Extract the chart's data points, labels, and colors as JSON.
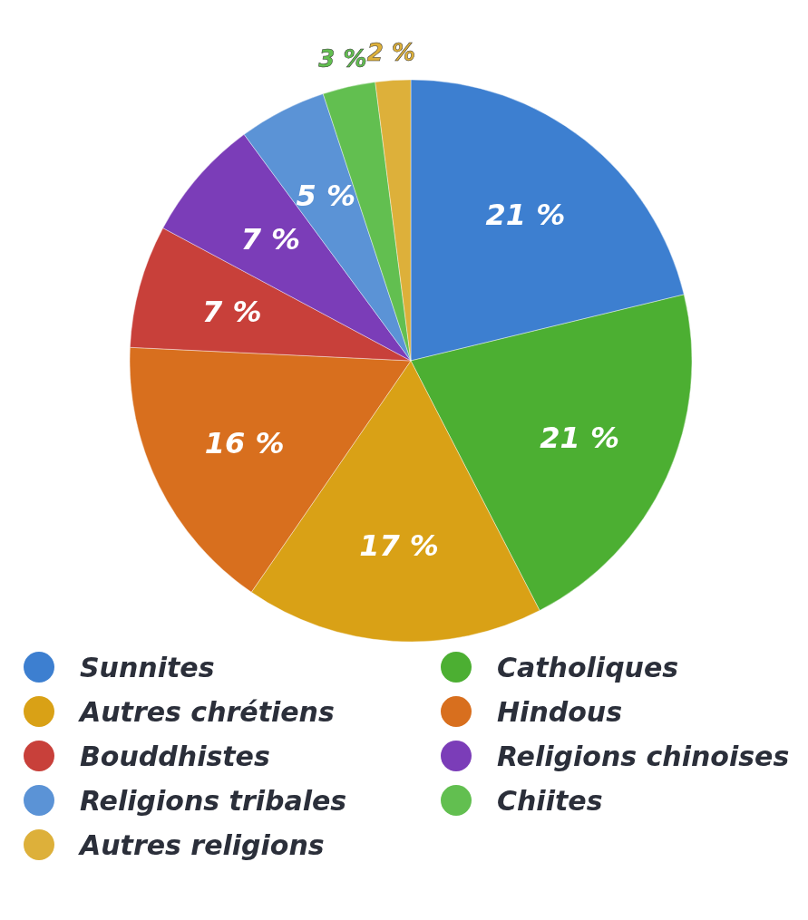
{
  "chart_data": {
    "type": "pie",
    "categories": [
      "Sunnites",
      "Catholiques",
      "Autres chrétiens",
      "Hindous",
      "Bouddhistes",
      "Religions chinoises",
      "Religions tribales",
      "Chiites",
      "Autres religions"
    ],
    "values": [
      21,
      21,
      17,
      16,
      7,
      7,
      5,
      3,
      2
    ],
    "colors": [
      "#3d7fd0",
      "#4caf32",
      "#d9a116",
      "#d86f1e",
      "#c8403a",
      "#7b3db8",
      "#5b93d6",
      "#62bf50",
      "#ddb03a"
    ],
    "value_labels": [
      "21 %",
      "21 %",
      "17 %",
      "16 %",
      "7 %",
      "7 %",
      "5 %",
      "3 %",
      "2 %"
    ],
    "legend": "bottom"
  }
}
